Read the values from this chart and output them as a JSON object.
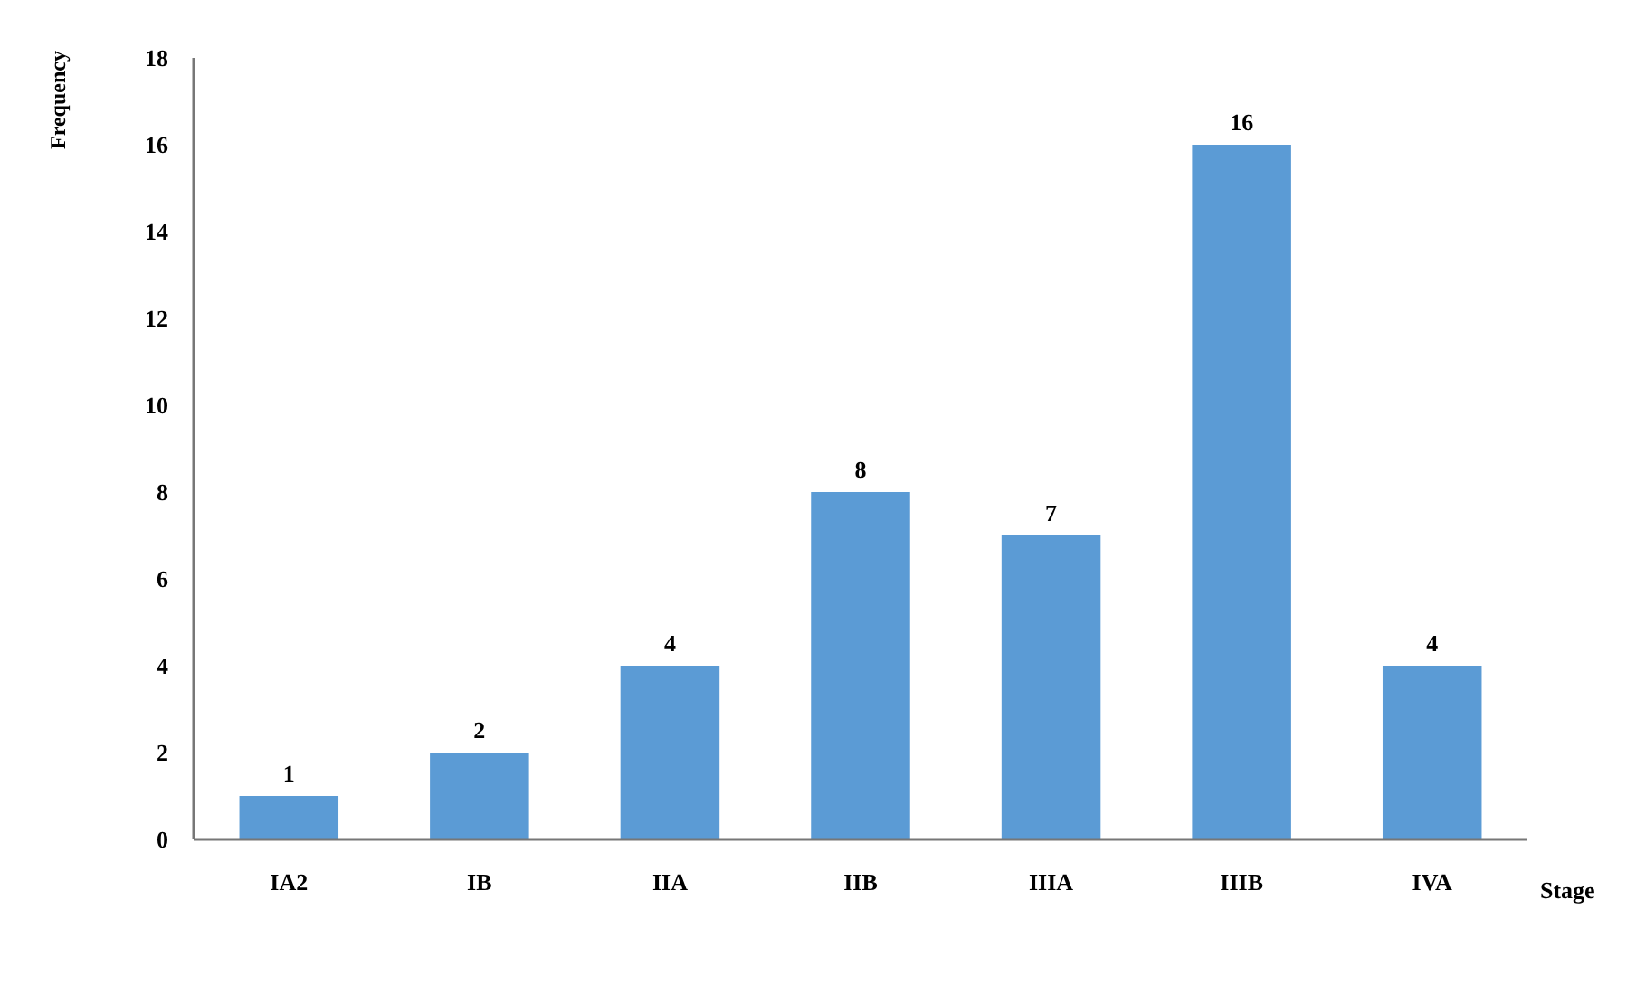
{
  "chart_data": {
    "type": "bar",
    "xlabel": "Stage",
    "ylabel": "Frequency",
    "categories": [
      "IA2",
      "IB",
      "IIA",
      "IIB",
      "IIIA",
      "IIIB",
      "IVA"
    ],
    "values": [
      1,
      2,
      4,
      8,
      7,
      16,
      4
    ],
    "color": "#5b9bd5",
    "ylim": [
      0,
      18
    ],
    "yticks": [
      0,
      2,
      4,
      6,
      8,
      10,
      12,
      14,
      16,
      18
    ],
    "data_labels": true
  }
}
